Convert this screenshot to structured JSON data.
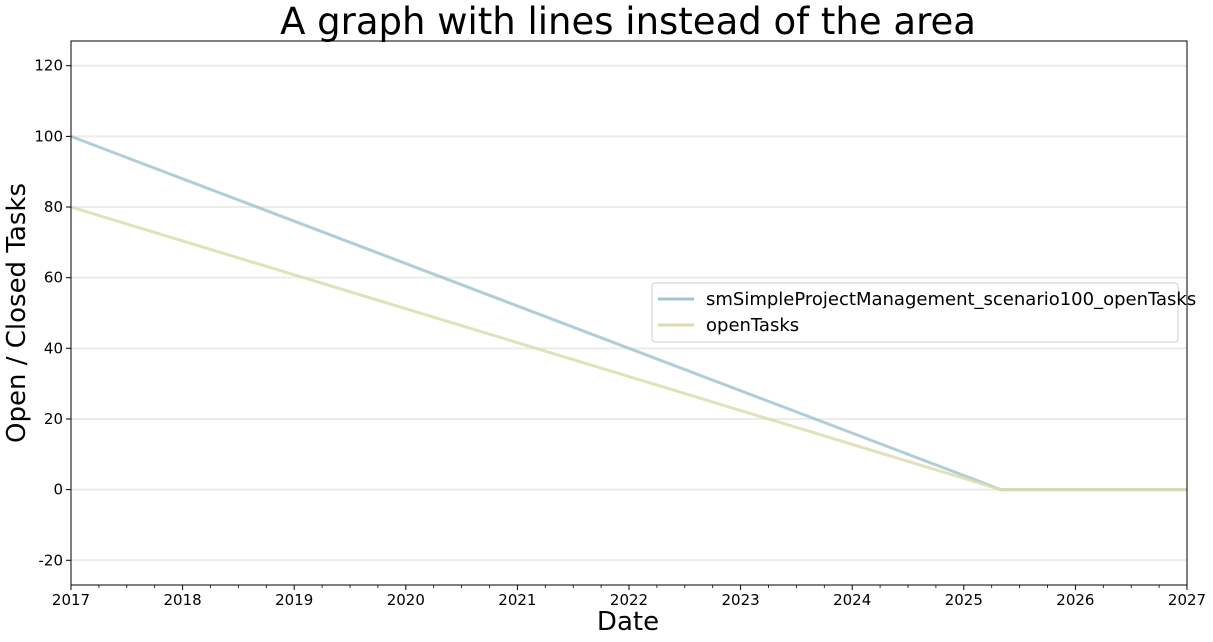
{
  "chart_data": {
    "type": "line",
    "title": "A graph with lines instead of the area",
    "xlabel": "Date",
    "ylabel": "Open / Closed Tasks",
    "xlim": [
      "2017",
      "2027"
    ],
    "ylim": [
      -27,
      127
    ],
    "x_ticks": [
      "2017",
      "2018",
      "2019",
      "2020",
      "2021",
      "2022",
      "2023",
      "2024",
      "2025",
      "2026",
      "2027"
    ],
    "y_ticks": [
      -20,
      0,
      20,
      40,
      60,
      80,
      100,
      120
    ],
    "grid": "horizontal",
    "legend_position": "center-right",
    "series": [
      {
        "name": "smSimpleProjectManagement_scenario100_openTasks",
        "color": "#a3c4d0",
        "x": [
          "2017-01",
          "2025-05",
          "2027-01"
        ],
        "y": [
          100,
          0,
          0
        ]
      },
      {
        "name": "openTasks",
        "color": "#dcdcae",
        "x": [
          "2017-01",
          "2025-05",
          "2027-01"
        ],
        "y": [
          80,
          0,
          0
        ]
      }
    ]
  }
}
